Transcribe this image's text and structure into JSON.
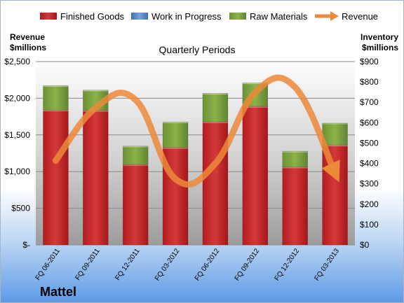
{
  "chart_data": {
    "type": "bar",
    "stacked": true,
    "title": "Quarterly Periods",
    "brand": "Mattel",
    "categories": [
      "FQ 06-2011",
      "FQ 09-2011",
      "FQ 12-2011",
      "FQ 03-2012",
      "FQ 06-2012",
      "FQ 09-2012",
      "FQ 12-2012",
      "FQ 03-2013"
    ],
    "y_left": {
      "label_lines": [
        "Revenue",
        "$millions"
      ],
      "ticks": [
        "$-",
        "$500",
        "$1,000",
        "$1,500",
        "$2,000",
        "$2,500"
      ],
      "ylim": [
        0,
        2500
      ]
    },
    "y_right": {
      "label_lines": [
        "Inventory",
        "$millions"
      ],
      "ticks": [
        "$0",
        "$100",
        "$200",
        "$300",
        "$400",
        "$500",
        "$600",
        "$700",
        "$800",
        "$900"
      ],
      "ylim": [
        0,
        900
      ]
    },
    "legend": {
      "position": "top",
      "entries": [
        "Finished Goods",
        "Work in Progress",
        "Raw Materials",
        "Revenue"
      ]
    },
    "series": [
      {
        "name": "Finished Goods",
        "axis": "right",
        "color": "#c0262a",
        "values": [
          662,
          660,
          395,
          478,
          604,
          680,
          382,
          490
        ]
      },
      {
        "name": "Work in Progress",
        "axis": "right",
        "color": "#4f81bd",
        "values": [
          0,
          0,
          0,
          0,
          0,
          0,
          0,
          0
        ]
      },
      {
        "name": "Raw Materials",
        "axis": "right",
        "color": "#78a03a",
        "values": [
          120,
          100,
          90,
          125,
          140,
          115,
          78,
          108
        ]
      },
      {
        "name": "Revenue",
        "axis": "left",
        "type": "line",
        "color": "#e8802a",
        "values": [
          1150,
          1870,
          1980,
          900,
          1110,
          2080,
          2150,
          980
        ]
      }
    ]
  }
}
